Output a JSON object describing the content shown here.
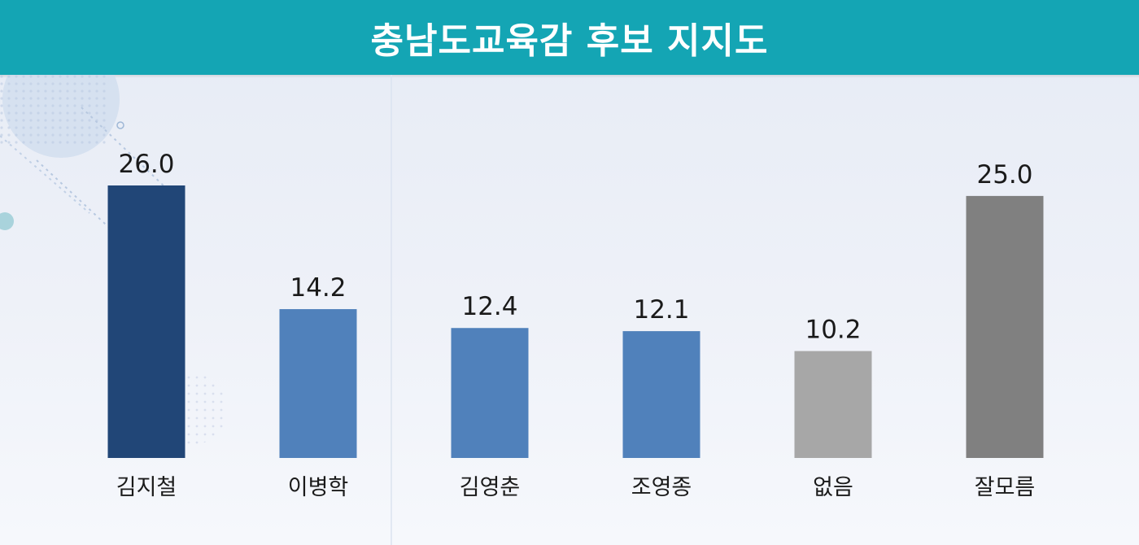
{
  "chart_data": {
    "type": "bar",
    "title": "충남도교육감 후보 지지도",
    "categories": [
      "김지철",
      "이병학",
      "김영춘",
      "조영종",
      "없음",
      "잘모름"
    ],
    "values": [
      26.0,
      14.2,
      12.4,
      12.1,
      10.2,
      25.0
    ],
    "value_labels": [
      "26.0",
      "14.2",
      "12.4",
      "12.1",
      "10.2",
      "25.0"
    ],
    "bar_colors": [
      "#214677",
      "#5081bb",
      "#5081bb",
      "#5081bb",
      "#a7a7a7",
      "#808080"
    ],
    "ylim": [
      0,
      26
    ],
    "xlabel": "",
    "ylabel": "",
    "grid": false,
    "legend": "none"
  },
  "colors": {
    "title_bar": "#14a5b4",
    "title_text": "#ffffff",
    "label_text": "#1a1a1a"
  }
}
